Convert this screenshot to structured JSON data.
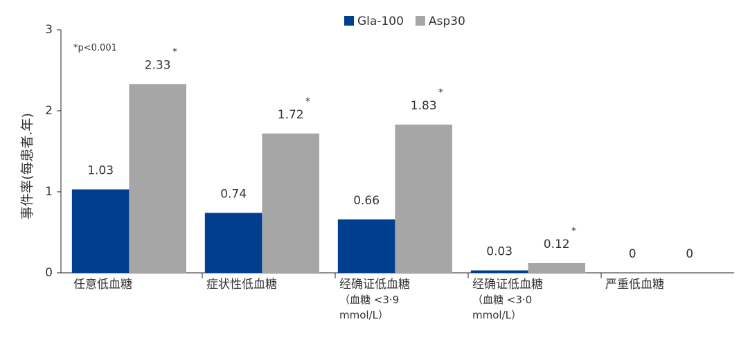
{
  "chart_data": {
    "type": "bar",
    "y_label": "事件率(每患者.年)",
    "annotation": "*p<0.001",
    "categories": [
      "任意低血糖",
      "症状性低血糖",
      "经确证低血糖\n（血糖 <3·9\nmmol/L）",
      "经确证低血糖\n（血糖 <3·0\nmmol/L）",
      "严重低血糖"
    ],
    "series": [
      {
        "name": "Gla-100",
        "color": "#003f8f",
        "values": [
          1.03,
          0.74,
          0.66,
          0.03,
          0
        ]
      },
      {
        "name": "Asp30",
        "color": "#a6a6a6",
        "values": [
          2.33,
          1.72,
          1.83,
          0.12,
          0
        ],
        "markers": [
          "*",
          "*",
          "*",
          "*",
          null
        ]
      }
    ],
    "ylim": [
      0,
      3
    ],
    "yticks": [
      0,
      1,
      2,
      3
    ],
    "grid": false,
    "legend": "top"
  }
}
